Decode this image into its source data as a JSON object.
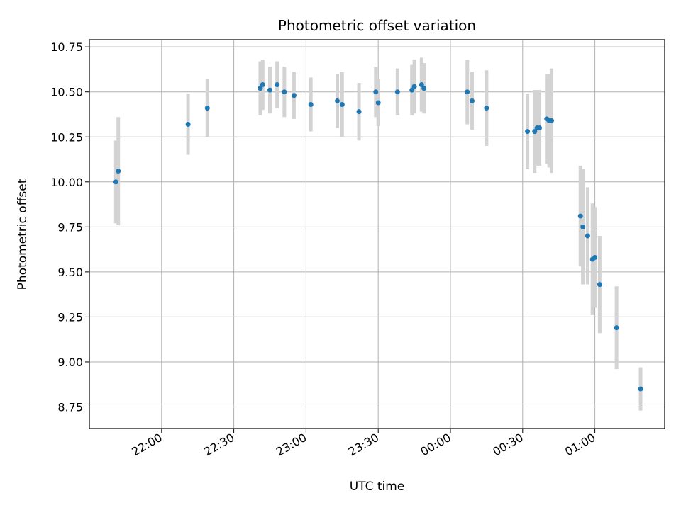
{
  "chart_data": {
    "type": "scatter",
    "title": "Photometric offset variation",
    "xlabel": "UTC time",
    "ylabel": "Photometric offset",
    "x_tick_labels": [
      "22:00",
      "22:30",
      "23:00",
      "23:30",
      "00:00",
      "00:30",
      "01:00"
    ],
    "y_tick_labels": [
      "8.75",
      "9.00",
      "9.25",
      "9.50",
      "9.75",
      "10.00",
      "10.25",
      "10.50",
      "10.75"
    ],
    "x_axis": "time",
    "grid": true,
    "colors": {
      "point": "#1f77b4",
      "errorbar": "#d3d3d3"
    },
    "series": [
      {
        "points": [
          {
            "t": "21:41",
            "y": 10.0,
            "err": 0.23
          },
          {
            "t": "21:42",
            "y": 10.06,
            "err": 0.3
          },
          {
            "t": "22:11",
            "y": 10.32,
            "err": 0.17
          },
          {
            "t": "22:19",
            "y": 10.41,
            "err": 0.16
          },
          {
            "t": "22:41",
            "y": 10.52,
            "err": 0.15
          },
          {
            "t": "22:42",
            "y": 10.54,
            "err": 0.14
          },
          {
            "t": "22:45",
            "y": 10.51,
            "err": 0.13
          },
          {
            "t": "22:48",
            "y": 10.54,
            "err": 0.13
          },
          {
            "t": "22:51",
            "y": 10.5,
            "err": 0.14
          },
          {
            "t": "22:55",
            "y": 10.48,
            "err": 0.13
          },
          {
            "t": "23:02",
            "y": 10.43,
            "err": 0.15
          },
          {
            "t": "23:13",
            "y": 10.45,
            "err": 0.15
          },
          {
            "t": "23:15",
            "y": 10.43,
            "err": 0.18
          },
          {
            "t": "23:22",
            "y": 10.39,
            "err": 0.16
          },
          {
            "t": "23:29",
            "y": 10.5,
            "err": 0.14
          },
          {
            "t": "23:30",
            "y": 10.44,
            "err": 0.13
          },
          {
            "t": "23:38",
            "y": 10.5,
            "err": 0.13
          },
          {
            "t": "23:44",
            "y": 10.51,
            "err": 0.14
          },
          {
            "t": "23:45",
            "y": 10.53,
            "err": 0.15
          },
          {
            "t": "23:48",
            "y": 10.54,
            "err": 0.15
          },
          {
            "t": "23:49",
            "y": 10.52,
            "err": 0.14
          },
          {
            "t": "00:07",
            "y": 10.5,
            "err": 0.18
          },
          {
            "t": "00:09",
            "y": 10.45,
            "err": 0.16
          },
          {
            "t": "00:15",
            "y": 10.41,
            "err": 0.21
          },
          {
            "t": "00:32",
            "y": 10.28,
            "err": 0.21
          },
          {
            "t": "00:35",
            "y": 10.28,
            "err": 0.23
          },
          {
            "t": "00:36",
            "y": 10.3,
            "err": 0.21
          },
          {
            "t": "00:37",
            "y": 10.3,
            "err": 0.21
          },
          {
            "t": "00:40",
            "y": 10.35,
            "err": 0.25
          },
          {
            "t": "00:41",
            "y": 10.34,
            "err": 0.26
          },
          {
            "t": "00:42",
            "y": 10.34,
            "err": 0.29
          },
          {
            "t": "00:54",
            "y": 9.81,
            "err": 0.28
          },
          {
            "t": "00:55",
            "y": 9.75,
            "err": 0.32
          },
          {
            "t": "00:57",
            "y": 9.7,
            "err": 0.27
          },
          {
            "t": "00:59",
            "y": 9.57,
            "err": 0.31
          },
          {
            "t": "01:00",
            "y": 9.58,
            "err": 0.28
          },
          {
            "t": "01:02",
            "y": 9.43,
            "err": 0.27
          },
          {
            "t": "01:09",
            "y": 9.19,
            "err": 0.23
          },
          {
            "t": "01:19",
            "y": 8.85,
            "err": 0.12
          }
        ]
      }
    ]
  }
}
